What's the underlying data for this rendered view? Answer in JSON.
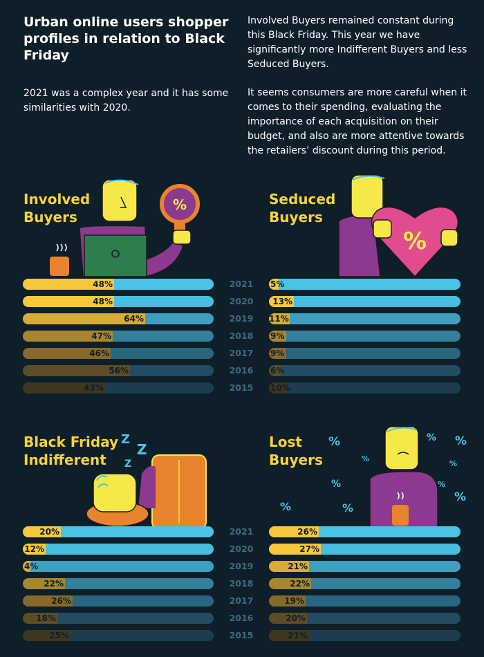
{
  "header": {
    "title": "Urban online users shopper profiles in relation to Black Friday",
    "intro": "2021 was a complex year and it has some similarities with 2020.",
    "right_p1": "Involved Buyers remained constant during this Black Friday. This year we have significantly more Indifferent Buyers and less Seduced Buyers.",
    "right_p2": "It seems consumers are more careful when it comes to their spending, evaluating the importance of each acquisition on their budget, and also are more attentive towards the retailers’ discount during this period."
  },
  "segments": {
    "involved": {
      "title_line1": "Involved",
      "title_line2": "Buyers"
    },
    "seduced": {
      "title_line1": "Seduced",
      "title_line2": "Buyers"
    },
    "indifferent": {
      "title_line1": "Black Friday",
      "title_line2": "Indifferent"
    },
    "lost": {
      "title_line1": "Lost",
      "title_line2": "Buyers"
    }
  },
  "illustrations": {
    "percent_symbol": "%",
    "sleep_z": "Z"
  },
  "years": [
    "2021",
    "2020",
    "2019",
    "2018",
    "2017",
    "2016",
    "2015"
  ],
  "chart_data": [
    {
      "type": "bar",
      "title": "Involved Buyers",
      "categories": [
        "2021",
        "2020",
        "2019",
        "2018",
        "2017",
        "2016",
        "2015"
      ],
      "values": [
        48,
        48,
        64,
        47,
        46,
        56,
        43
      ],
      "value_labels": [
        "48%",
        "48%",
        "64%",
        "47%",
        "46%",
        "56%",
        "43%"
      ],
      "ylim": [
        0,
        100
      ]
    },
    {
      "type": "bar",
      "title": "Seduced Buyers",
      "categories": [
        "2021",
        "2020",
        "2019",
        "2018",
        "2017",
        "2016",
        "2015"
      ],
      "values": [
        5,
        13,
        11,
        9,
        9,
        6,
        10
      ],
      "value_labels": [
        "5%",
        "13%",
        "11%",
        "9%",
        "9%",
        "6%",
        "10%"
      ],
      "ylim": [
        0,
        100
      ]
    },
    {
      "type": "bar",
      "title": "Black Friday Indifferent",
      "categories": [
        "2021",
        "2020",
        "2019",
        "2018",
        "2017",
        "2016",
        "2015"
      ],
      "values": [
        20,
        12,
        4,
        22,
        26,
        18,
        25
      ],
      "value_labels": [
        "20%",
        "12%",
        "4%",
        "22%",
        "26%",
        "18%",
        "25%"
      ],
      "ylim": [
        0,
        100
      ]
    },
    {
      "type": "bar",
      "title": "Lost Buyers",
      "categories": [
        "2021",
        "2020",
        "2019",
        "2018",
        "2017",
        "2016",
        "2015"
      ],
      "values": [
        26,
        27,
        21,
        22,
        19,
        20,
        21
      ],
      "value_labels": [
        "26%",
        "27%",
        "21%",
        "22%",
        "19%",
        "20%",
        "21%"
      ],
      "ylim": [
        0,
        100
      ]
    }
  ],
  "colors": {
    "background": "#0f1f29",
    "title_yellow": "#f7d33b",
    "fill_yellow": [
      "#f7c83c",
      "#f7c83c",
      "#d8ac35",
      "#a9852f",
      "#86692b",
      "#5e4c24",
      "#3f3620"
    ],
    "track_blue": [
      "#4cc3e6",
      "#49bde0",
      "#3f9fc0",
      "#347f9c",
      "#2a6580",
      "#214d63",
      "#1b3d4f"
    ]
  }
}
